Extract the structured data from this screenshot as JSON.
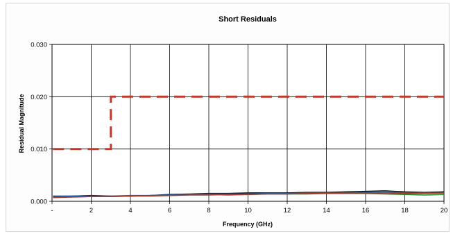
{
  "chart_data": {
    "type": "line",
    "title": "Short Residuals",
    "xlabel": "Frequency (GHz)",
    "ylabel": "Residual Magnitude",
    "xlim": [
      0,
      20
    ],
    "ylim": [
      0,
      0.03
    ],
    "x_ticks": [
      0,
      2,
      4,
      6,
      8,
      10,
      12,
      14,
      16,
      18,
      20
    ],
    "x_tick_labels": [
      "-",
      "2",
      "4",
      "6",
      "8",
      "10",
      "12",
      "14",
      "16",
      "18",
      "20"
    ],
    "y_ticks": [
      0,
      0.01,
      0.02,
      0.03
    ],
    "y_tick_labels": [
      "0.000",
      "0.010",
      "0.020",
      "0.030"
    ],
    "grid": true,
    "legend": "none",
    "series": [
      {
        "color": "#c0392b",
        "style": "dashed",
        "x": [
          0.05,
          3.0,
          3.0,
          20.0
        ],
        "y": [
          0.01,
          0.01,
          0.02,
          0.02
        ]
      },
      {
        "color": "#111111",
        "style": "solid",
        "x": [
          0.05,
          1,
          2,
          3,
          4,
          5,
          6,
          7,
          8,
          9,
          10,
          11,
          12,
          13,
          14,
          15,
          16,
          17,
          18,
          19,
          20
        ],
        "y": [
          0.001,
          0.001,
          0.0011,
          0.001,
          0.001,
          0.0011,
          0.0013,
          0.0014,
          0.0015,
          0.0015,
          0.0016,
          0.0016,
          0.0016,
          0.0017,
          0.0017,
          0.0018,
          0.0019,
          0.002,
          0.0018,
          0.0017,
          0.0018
        ]
      },
      {
        "color": "#1f8a2c",
        "style": "solid",
        "x": [
          0.05,
          1,
          2,
          3,
          4,
          5,
          6,
          7,
          8,
          9,
          10,
          11,
          12,
          13,
          14,
          15,
          16,
          17,
          18,
          19,
          20
        ],
        "y": [
          0.0008,
          0.0009,
          0.001,
          0.0009,
          0.001,
          0.0011,
          0.0012,
          0.0013,
          0.0013,
          0.0012,
          0.0013,
          0.0014,
          0.0014,
          0.0014,
          0.0015,
          0.0015,
          0.0015,
          0.0014,
          0.0013,
          0.0012,
          0.0013
        ]
      },
      {
        "color": "#1a5fb4",
        "style": "solid",
        "x": [
          0.05,
          1,
          2,
          3,
          4,
          5,
          6,
          7,
          8,
          9,
          10,
          11,
          12,
          13,
          14,
          15,
          16,
          17,
          18,
          19,
          20
        ],
        "y": [
          0.0009,
          0.001,
          0.001,
          0.001,
          0.0011,
          0.0011,
          0.0012,
          0.0013,
          0.0014,
          0.0014,
          0.0014,
          0.0015,
          0.0015,
          0.0016,
          0.0016,
          0.0016,
          0.0017,
          0.0017,
          0.0016,
          0.0016,
          0.0016
        ]
      },
      {
        "color": "#a33a2a",
        "style": "solid",
        "x": [
          0.05,
          1,
          2,
          3,
          4,
          5,
          6,
          7,
          8,
          9,
          10,
          11,
          12,
          13,
          14,
          15,
          16,
          17,
          18,
          19,
          20
        ],
        "y": [
          0.0007,
          0.0008,
          0.0009,
          0.0009,
          0.001,
          0.001,
          0.0011,
          0.0012,
          0.0012,
          0.0013,
          0.0013,
          0.0014,
          0.0014,
          0.0015,
          0.0015,
          0.0016,
          0.0016,
          0.0016,
          0.0015,
          0.0015,
          0.0016
        ]
      }
    ]
  }
}
